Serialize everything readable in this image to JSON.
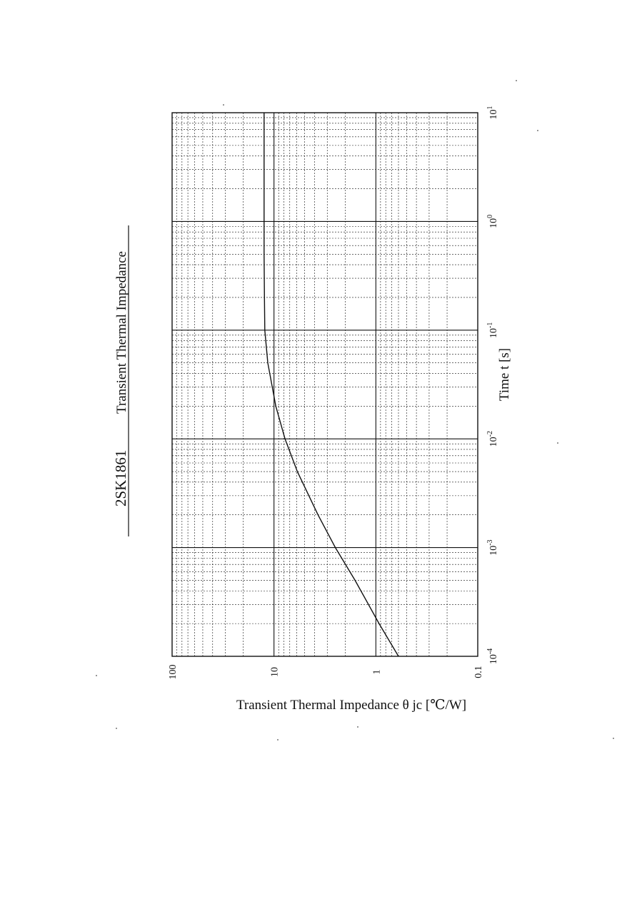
{
  "page": {
    "background": "#ffffff",
    "ink": "#111111"
  },
  "chart_data": {
    "type": "line",
    "title": "2SK1861",
    "subtitle": "Transient Thermal Impedance",
    "xlabel": "Time  t  [s]",
    "ylabel": "Transient Thermal Impedance  θ jc  [℃/W]",
    "x_scale": "log",
    "y_scale": "log",
    "xlim": [
      0.0001,
      10
    ],
    "ylim": [
      0.1,
      100
    ],
    "x_ticks": [
      {
        "value": 0.0001,
        "base": "10",
        "exp": "-4"
      },
      {
        "value": 0.001,
        "base": "10",
        "exp": "-3"
      },
      {
        "value": 0.01,
        "base": "10",
        "exp": "-2"
      },
      {
        "value": 0.1,
        "base": "10",
        "exp": "-1"
      },
      {
        "value": 1,
        "base": "10",
        "exp": "0"
      },
      {
        "value": 10,
        "base": "10",
        "exp": "1"
      }
    ],
    "y_ticks": [
      {
        "value": 100,
        "label": "100"
      },
      {
        "value": 10,
        "label": "10"
      },
      {
        "value": 1,
        "label": "1"
      },
      {
        "value": 0.1,
        "label": "0.1"
      }
    ],
    "grid": true,
    "series": [
      {
        "x": [
          0.0001,
          0.0002,
          0.0005,
          0.001,
          0.002,
          0.005,
          0.01,
          0.02,
          0.05,
          0.1,
          0.2,
          0.5,
          1,
          2,
          5,
          10
        ],
        "y": [
          0.6,
          0.93,
          1.6,
          2.5,
          3.7,
          5.9,
          7.8,
          9.6,
          11.5,
          12.3,
          12.4,
          12.5,
          12.5,
          12.5,
          12.5,
          12.5
        ]
      }
    ]
  }
}
